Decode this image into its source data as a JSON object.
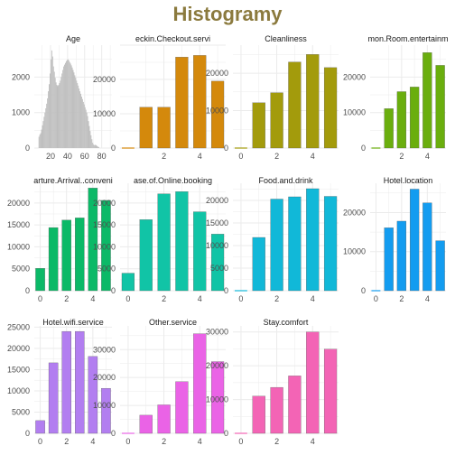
{
  "title": "Histogramy",
  "chart_data": [
    {
      "type": "bar",
      "title": "Age",
      "color": "#bebebe",
      "histogram": true,
      "x_range": [
        1,
        92
      ],
      "x_ticks": [
        20,
        40,
        60,
        80
      ],
      "y_ticks": [
        0,
        1000,
        2000
      ],
      "ylim": [
        0,
        2900
      ],
      "bins_start": 6,
      "bins_width": 1,
      "values": [
        320,
        380,
        420,
        520,
        640,
        760,
        880,
        1000,
        1120,
        1250,
        1400,
        1600,
        1800,
        2100,
        2500,
        2750,
        2580,
        2300,
        2150,
        1980,
        1850,
        1780,
        1750,
        1780,
        1830,
        1900,
        2000,
        2100,
        2200,
        2300,
        2350,
        2400,
        2450,
        2480,
        2500,
        2470,
        2420,
        2380,
        2330,
        2270,
        2200,
        2130,
        2050,
        1980,
        1900,
        1830,
        1760,
        1680,
        1600,
        1530,
        1450,
        1380,
        1300,
        1230,
        1150,
        1080,
        1000,
        900,
        760,
        620,
        480,
        360,
        250,
        150,
        100,
        80,
        90,
        80,
        60,
        40,
        30
      ]
    },
    {
      "type": "bar",
      "title": "eckin.Checkout.servi",
      "color": "#d4890c",
      "x_range": [
        -0.45,
        5.45
      ],
      "x_ticks": [
        2,
        4
      ],
      "y_ticks": [
        0,
        10000,
        20000
      ],
      "ylim": [
        0,
        30000
      ],
      "categories": [
        0,
        1,
        2,
        3,
        4,
        5
      ],
      "values": [
        0,
        11900,
        11900,
        26500,
        27000,
        19500
      ]
    },
    {
      "type": "bar",
      "title": "Cleanliness",
      "color": "#a39b0c",
      "x_range": [
        -0.45,
        5.45
      ],
      "x_ticks": [
        0,
        2,
        4
      ],
      "y_ticks": [
        0,
        10000,
        20000
      ],
      "ylim": [
        0,
        27500
      ],
      "categories": [
        0,
        1,
        2,
        3,
        4,
        5
      ],
      "values": [
        0,
        12100,
        14800,
        23000,
        25000,
        21500
      ]
    },
    {
      "type": "bar",
      "title": "mon.Room.entertainm",
      "color": "#6aae0e",
      "x_range": [
        -0.45,
        5.45
      ],
      "x_ticks": [
        2,
        4
      ],
      "y_ticks": [
        0,
        10000,
        20000
      ],
      "ylim": [
        0,
        29000
      ],
      "categories": [
        0,
        1,
        2,
        3,
        4,
        5
      ],
      "values": [
        0,
        11100,
        15900,
        17200,
        26900,
        23300
      ]
    },
    {
      "type": "bar",
      "title": "arture.Arrival..conveni",
      "color": "#0bb967",
      "x_range": [
        -0.45,
        5.45
      ],
      "x_ticks": [
        0,
        2,
        4
      ],
      "y_ticks": [
        0,
        5000,
        10000,
        15000,
        20000
      ],
      "ylim": [
        0,
        24500
      ],
      "categories": [
        0,
        1,
        2,
        3,
        4,
        5
      ],
      "values": [
        5100,
        14400,
        16100,
        16600,
        23400,
        20600
      ]
    },
    {
      "type": "bar",
      "title": "ase.of.Online.booking",
      "color": "#11c4a6",
      "x_range": [
        -0.45,
        5.45
      ],
      "x_ticks": [
        0,
        2,
        4
      ],
      "y_ticks": [
        0,
        5000,
        10000,
        15000,
        20000
      ],
      "ylim": [
        0,
        24500
      ],
      "categories": [
        0,
        1,
        2,
        3,
        4,
        5
      ],
      "values": [
        4000,
        16200,
        22100,
        22600,
        18000,
        12900
      ]
    },
    {
      "type": "bar",
      "title": "Food.and.drink",
      "color": "#11b8d8",
      "x_range": [
        -0.45,
        5.45
      ],
      "x_ticks": [
        0,
        2,
        4
      ],
      "y_ticks": [
        0,
        5000,
        10000,
        15000,
        20000
      ],
      "ylim": [
        0,
        23800
      ],
      "categories": [
        0,
        1,
        2,
        3,
        4,
        5
      ],
      "values": [
        0,
        11800,
        20300,
        20800,
        22600,
        20900
      ]
    },
    {
      "type": "bar",
      "title": "Hotel.location",
      "color": "#139cf0",
      "x_range": [
        -0.45,
        5.45
      ],
      "x_ticks": [
        0,
        2,
        4
      ],
      "y_ticks": [
        0,
        10000,
        20000
      ],
      "ylim": [
        0,
        27500
      ],
      "categories": [
        0,
        1,
        2,
        3,
        4,
        5
      ],
      "values": [
        0,
        16100,
        17800,
        26000,
        22500,
        12800
      ]
    },
    {
      "type": "bar",
      "title": "Hotel.wifi.service",
      "color": "#b27ef0",
      "x_range": [
        -0.45,
        5.45
      ],
      "x_ticks": [
        0,
        2,
        4
      ],
      "y_ticks": [
        0,
        5000,
        10000,
        15000,
        20000,
        25000
      ],
      "ylim": [
        0,
        25300
      ],
      "categories": [
        0,
        1,
        2,
        3,
        4,
        5
      ],
      "values": [
        3000,
        16600,
        24000,
        24000,
        18100,
        10600
      ]
    },
    {
      "type": "bar",
      "title": "Other.service",
      "color": "#ea63e6",
      "x_range": [
        -0.45,
        5.45
      ],
      "x_ticks": [
        0,
        2,
        4
      ],
      "y_ticks": [
        0,
        10000,
        20000,
        30000
      ],
      "ylim": [
        0,
        38500
      ],
      "categories": [
        0,
        1,
        2,
        3,
        4,
        5
      ],
      "values": [
        0,
        6500,
        10200,
        18500,
        35700,
        25700
      ]
    },
    {
      "type": "bar",
      "title": "Stay.comfort",
      "color": "#f364b5",
      "x_range": [
        -0.45,
        5.45
      ],
      "x_ticks": [
        0,
        2,
        4
      ],
      "y_ticks": [
        0,
        10000,
        20000,
        30000
      ],
      "ylim": [
        0,
        31800
      ],
      "categories": [
        0,
        1,
        2,
        3,
        4,
        5
      ],
      "values": [
        0,
        11000,
        13600,
        17000,
        30000,
        24900
      ]
    }
  ]
}
